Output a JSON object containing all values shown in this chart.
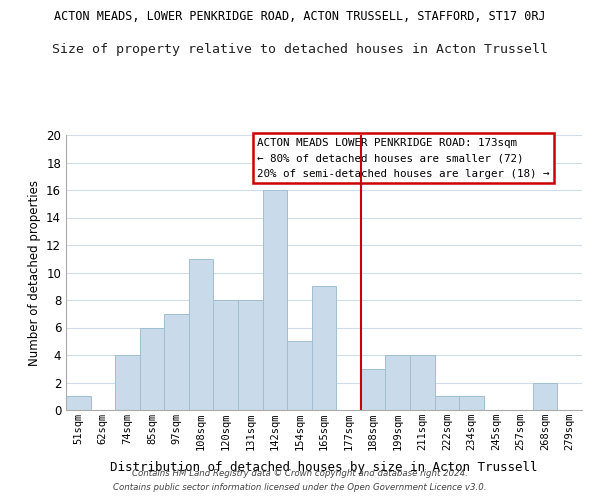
{
  "title": "ACTON MEADS, LOWER PENKRIDGE ROAD, ACTON TRUSSELL, STAFFORD, ST17 0RJ",
  "subtitle": "Size of property relative to detached houses in Acton Trussell",
  "xlabel": "Distribution of detached houses by size in Acton Trussell",
  "ylabel": "Number of detached properties",
  "footer_line1": "Contains HM Land Registry data © Crown copyright and database right 2024.",
  "footer_line2": "Contains public sector information licensed under the Open Government Licence v3.0.",
  "bin_labels": [
    "51sqm",
    "62sqm",
    "74sqm",
    "85sqm",
    "97sqm",
    "108sqm",
    "120sqm",
    "131sqm",
    "142sqm",
    "154sqm",
    "165sqm",
    "177sqm",
    "188sqm",
    "199sqm",
    "211sqm",
    "222sqm",
    "234sqm",
    "245sqm",
    "257sqm",
    "268sqm",
    "279sqm"
  ],
  "bar_heights": [
    1,
    0,
    4,
    6,
    7,
    11,
    8,
    8,
    16,
    5,
    9,
    0,
    3,
    4,
    4,
    1,
    1,
    0,
    0,
    2,
    0
  ],
  "bar_color": "#c9daea",
  "bar_edge_color": "#a0bfd0",
  "grid_color": "#d0dde8",
  "vline_x_index": 11.5,
  "vline_color": "#cc0000",
  "ylim": [
    0,
    20
  ],
  "yticks": [
    0,
    2,
    4,
    6,
    8,
    10,
    12,
    14,
    16,
    18,
    20
  ],
  "annotation_title": "ACTON MEADS LOWER PENKRIDGE ROAD: 173sqm",
  "annotation_line2": "← 80% of detached houses are smaller (72)",
  "annotation_line3": "20% of semi-detached houses are larger (18) →",
  "background_color": "#ffffff",
  "title_fontsize": 8.5,
  "subtitle_fontsize": 9.5
}
